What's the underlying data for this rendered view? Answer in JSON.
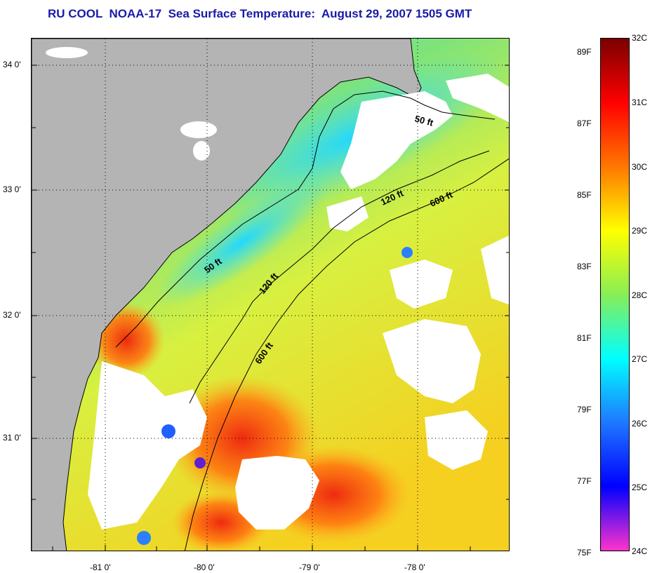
{
  "title": "RU COOL  NOAA-17  Sea Surface Temperature:  August 29, 2007 1505 GMT",
  "map": {
    "lat_labels": [
      "34 0'",
      "33 0'",
      "32 0'",
      "31 0'"
    ],
    "lon_labels": [
      "-81 0'",
      "-80 0'",
      "-79 0'",
      "-78 0'"
    ],
    "depth_contours": [
      "50 ft",
      "50 ft",
      "120 ft",
      "120 ft",
      "600 ft",
      "600 ft"
    ],
    "colors": {
      "land": "#b4b4b4",
      "cloud": "#ffffff",
      "coastline": "#000000",
      "grid": "#000000"
    }
  },
  "colorbar": {
    "fahrenheit_labels": [
      "89F",
      "87F",
      "85F",
      "83F",
      "81F",
      "79F",
      "77F",
      "75F"
    ],
    "celsius_labels": [
      "32C",
      "31C",
      "30C",
      "29C",
      "28C",
      "27C",
      "26C",
      "25C",
      "24C"
    ],
    "range_c": [
      24,
      32
    ],
    "gradient_stops": [
      {
        "c": 32,
        "color": "#7a0000"
      },
      {
        "c": 31,
        "color": "#ff0000"
      },
      {
        "c": 30,
        "color": "#ff7700"
      },
      {
        "c": 29,
        "color": "#ffff00"
      },
      {
        "c": 28,
        "color": "#88ee55"
      },
      {
        "c": 27,
        "color": "#00ffff"
      },
      {
        "c": 26,
        "color": "#1e78ff"
      },
      {
        "c": 25,
        "color": "#0000ff"
      },
      {
        "c": 24,
        "color": "#ff33cc"
      }
    ]
  }
}
